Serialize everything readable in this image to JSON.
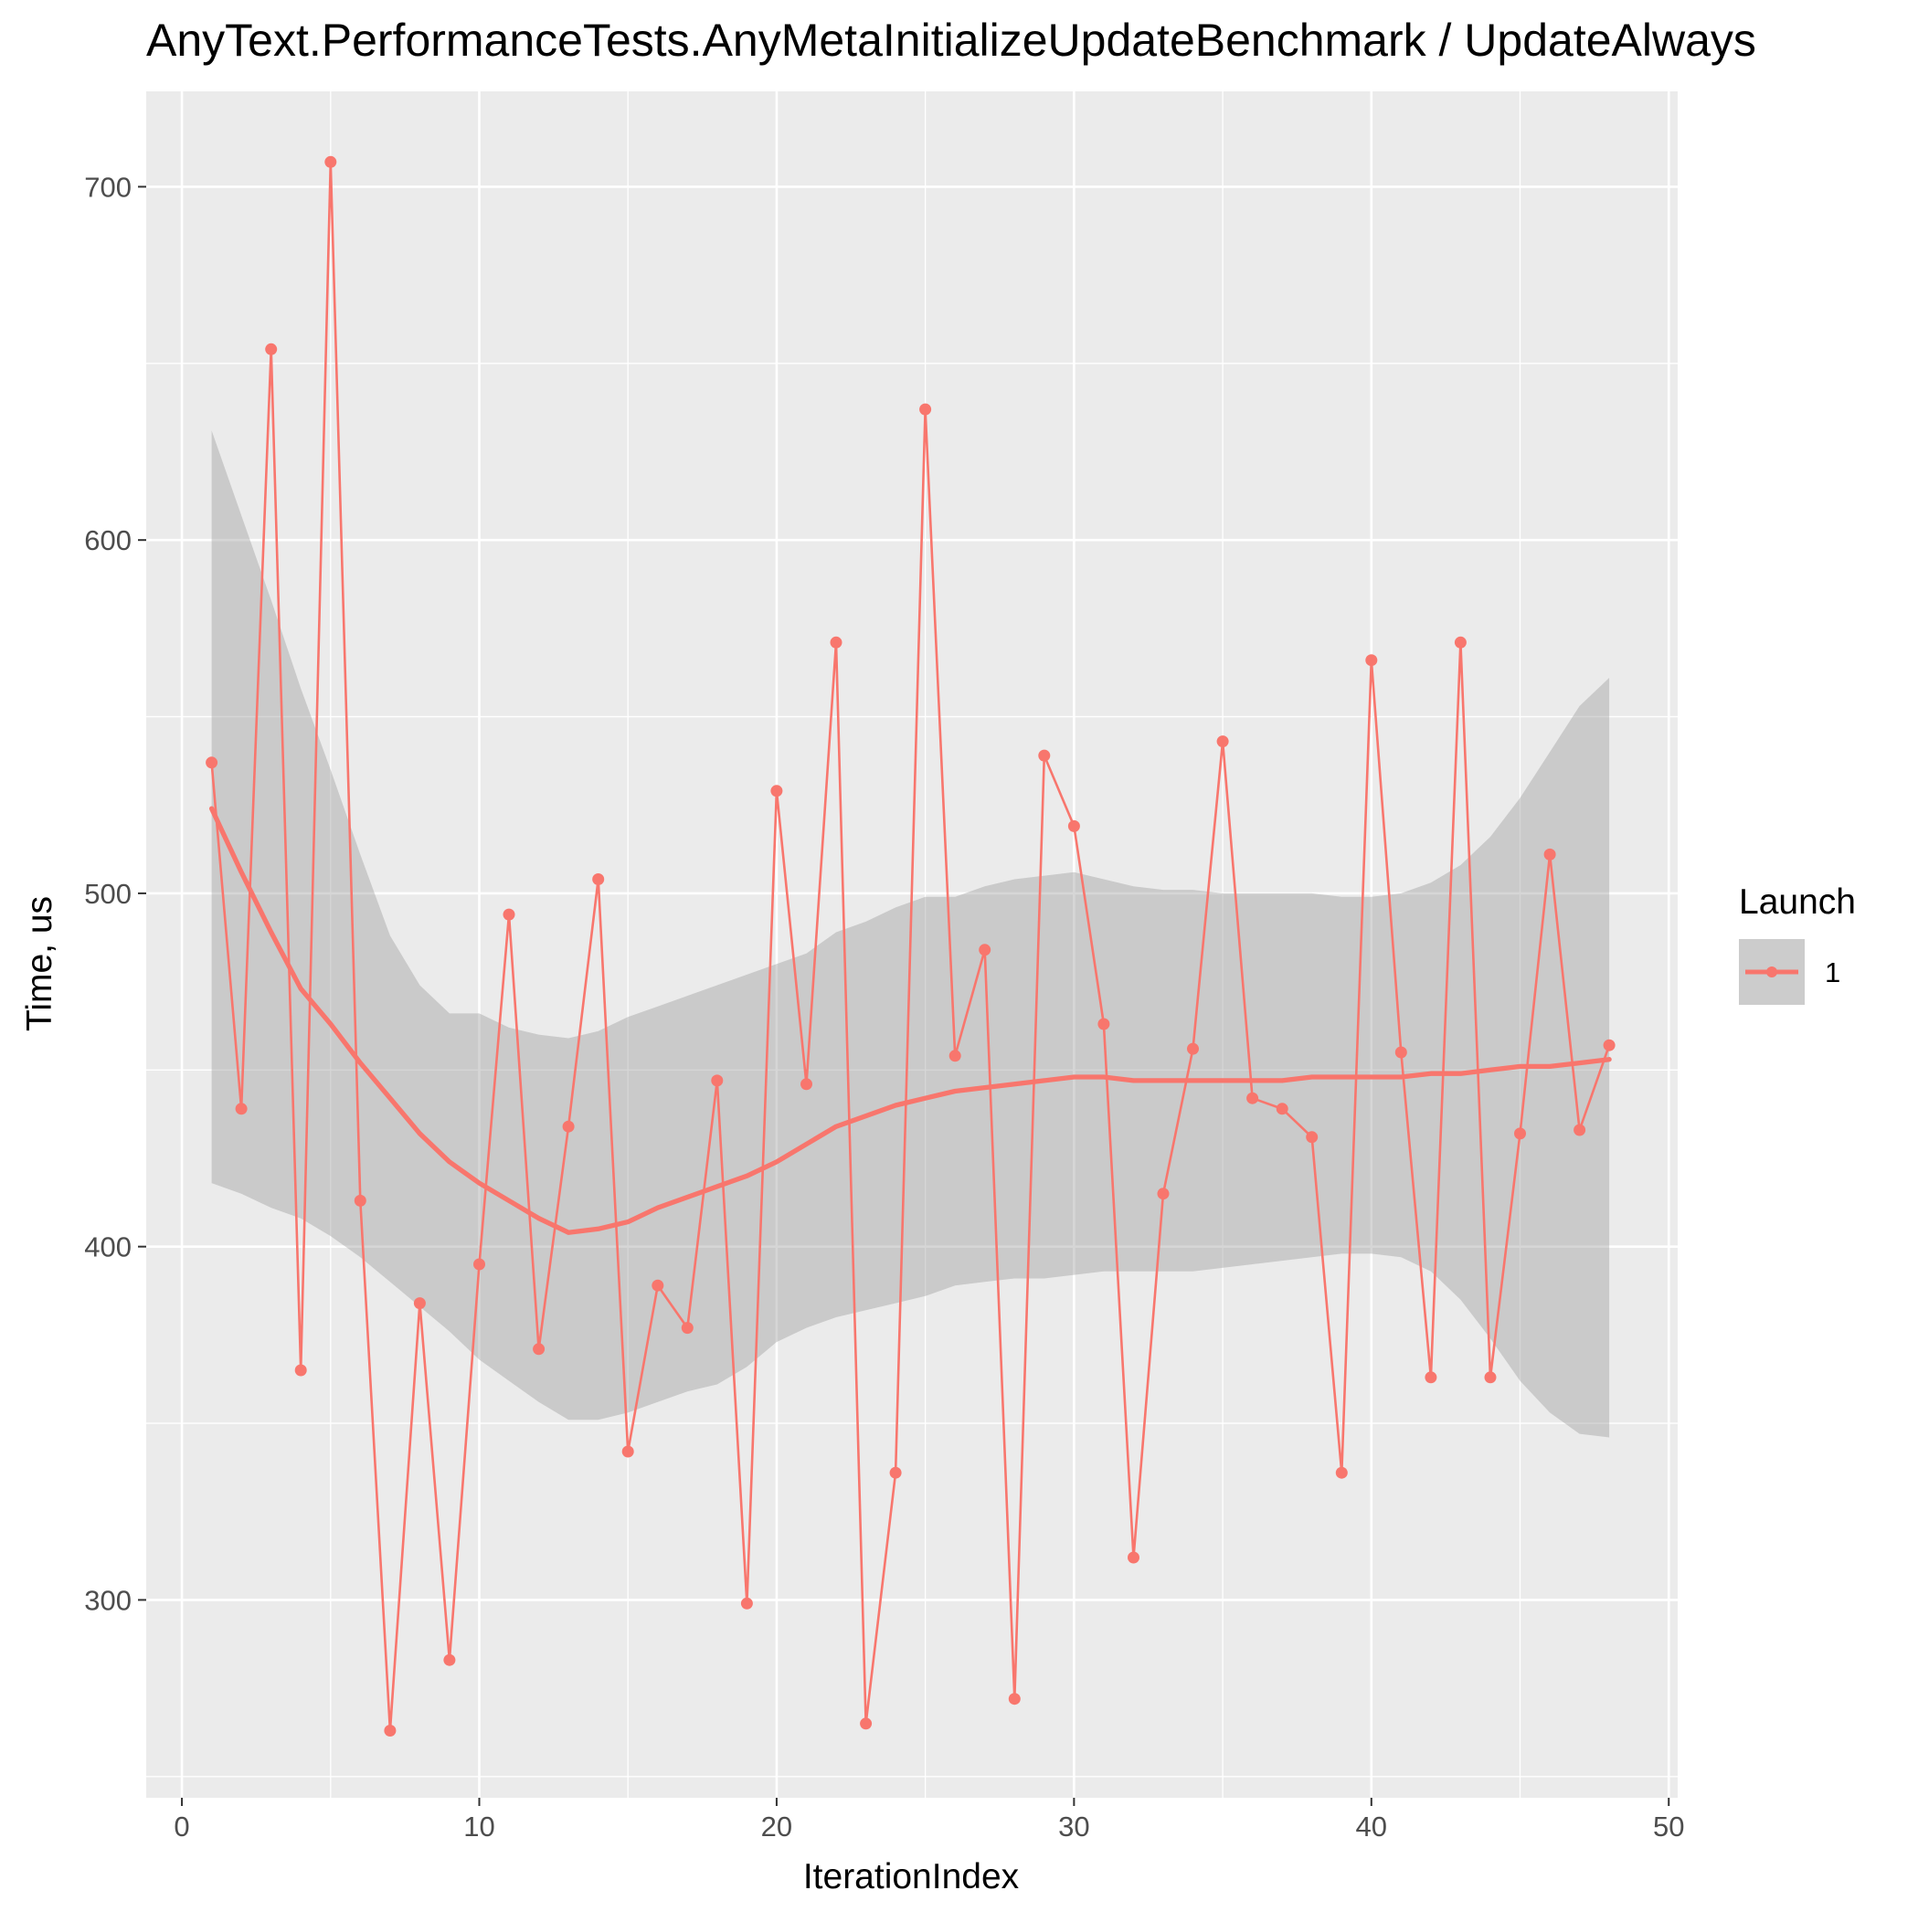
{
  "chart_data": {
    "type": "line",
    "title": "AnyText.PerformanceTests.AnyMetaInitializeUpdateBenchmark / UpdateAlways",
    "xlabel": "IterationIndex",
    "ylabel": "Time, us",
    "xlim": [
      -1.2,
      50.3
    ],
    "ylim": [
      244,
      727
    ],
    "x_ticks": [
      0,
      10,
      20,
      30,
      40,
      50
    ],
    "y_ticks": [
      300,
      400,
      500,
      600,
      700
    ],
    "grid": true,
    "legend": {
      "title": "Launch",
      "position": "right",
      "entries": [
        "1"
      ]
    },
    "colors": {
      "series": "#f8766d",
      "band": "#999999",
      "panel": "#ebebeb",
      "grid": "#ffffff"
    },
    "series": [
      {
        "name": "1",
        "x": [
          1,
          2,
          3,
          4,
          5,
          6,
          7,
          8,
          9,
          10,
          11,
          12,
          13,
          14,
          15,
          16,
          17,
          18,
          19,
          20,
          21,
          22,
          23,
          24,
          25,
          26,
          27,
          28,
          29,
          30,
          31,
          32,
          33,
          34,
          35,
          36,
          37,
          38,
          39,
          40,
          41,
          42,
          43,
          44,
          45,
          46,
          47,
          48
        ],
        "y": [
          537,
          439,
          654,
          365,
          707,
          413,
          263,
          384,
          283,
          395,
          494,
          371,
          434,
          504,
          342,
          389,
          377,
          447,
          299,
          529,
          446,
          571,
          265,
          336,
          637,
          454,
          484,
          272,
          539,
          519,
          463,
          312,
          415,
          456,
          543,
          442,
          439,
          431,
          336,
          566,
          455,
          363,
          571,
          363,
          432,
          511,
          433,
          457
        ]
      }
    ],
    "smooth": {
      "x": [
        1,
        2,
        3,
        4,
        5,
        6,
        7,
        8,
        9,
        10,
        11,
        12,
        13,
        14,
        15,
        16,
        17,
        18,
        19,
        20,
        21,
        22,
        23,
        24,
        25,
        26,
        27,
        28,
        29,
        30,
        31,
        32,
        33,
        34,
        35,
        36,
        37,
        38,
        39,
        40,
        41,
        42,
        43,
        44,
        45,
        46,
        47,
        48
      ],
      "y": [
        524,
        506,
        489,
        473,
        463,
        452,
        442,
        432,
        424,
        418,
        413,
        408,
        404,
        405,
        407,
        411,
        414,
        417,
        420,
        424,
        429,
        434,
        437,
        440,
        442,
        444,
        445,
        446,
        447,
        448,
        448,
        447,
        447,
        447,
        447,
        447,
        447,
        448,
        448,
        448,
        448,
        449,
        449,
        450,
        451,
        451,
        452,
        453
      ],
      "lower": [
        418,
        415,
        411,
        408,
        403,
        397,
        390,
        383,
        376,
        368,
        362,
        356,
        351,
        351,
        353,
        356,
        359,
        361,
        366,
        373,
        377,
        380,
        382,
        384,
        386,
        389,
        390,
        391,
        391,
        392,
        393,
        393,
        393,
        393,
        394,
        395,
        396,
        397,
        398,
        398,
        397,
        393,
        385,
        374,
        362,
        353,
        347,
        346
      ],
      "upper": [
        631,
        607,
        583,
        558,
        535,
        511,
        488,
        474,
        466,
        466,
        462,
        460,
        459,
        461,
        465,
        468,
        471,
        474,
        477,
        480,
        483,
        489,
        492,
        496,
        499,
        499,
        502,
        504,
        505,
        506,
        504,
        502,
        501,
        501,
        500,
        500,
        500,
        500,
        499,
        499,
        500,
        503,
        508,
        516,
        527,
        540,
        553,
        561
      ]
    }
  }
}
